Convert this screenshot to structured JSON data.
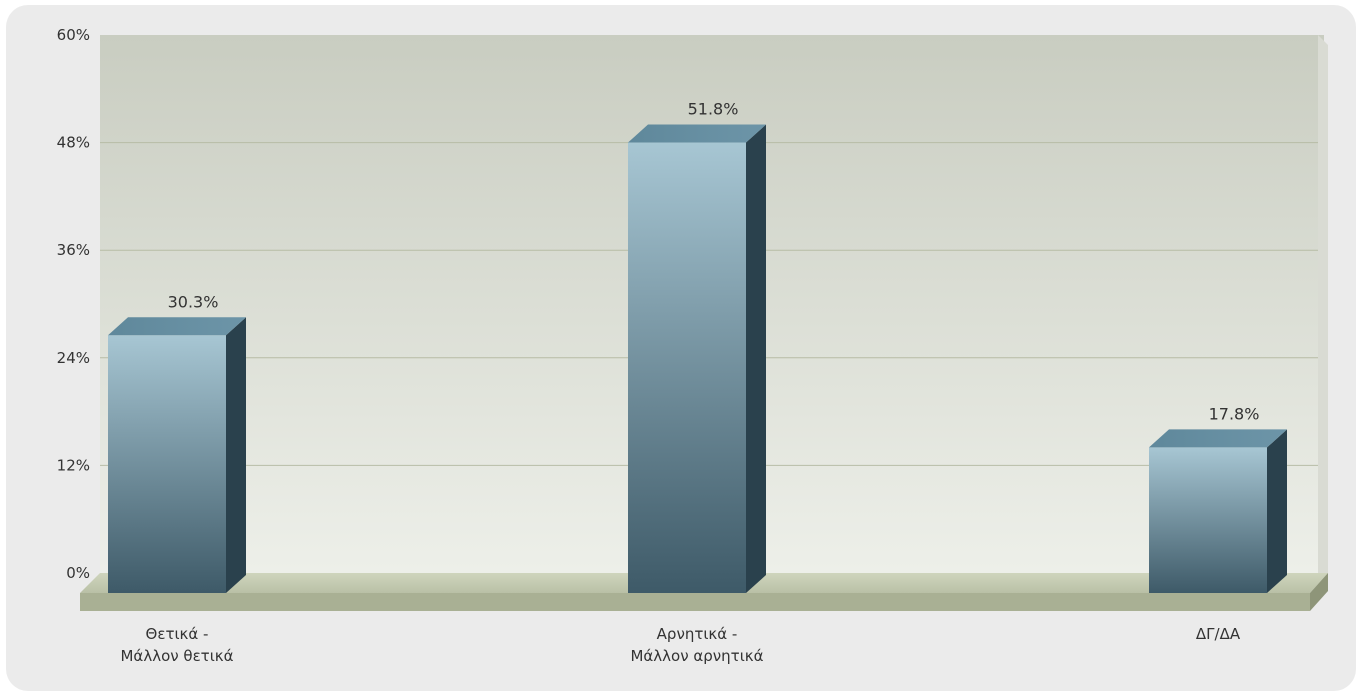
{
  "chart_data": {
    "type": "bar",
    "categories": [
      [
        "Θετικά -",
        "Μάλλον θετικά"
      ],
      [
        "Αρνητικά -",
        "Μάλλον αρνητικά"
      ],
      [
        "ΔΓ/ΔΑ"
      ]
    ],
    "values": [
      30.3,
      51.8,
      17.8
    ],
    "data_labels": [
      "30.3%",
      "51.8%",
      "17.8%"
    ],
    "y_ticks": [
      0,
      12,
      24,
      36,
      48,
      60
    ],
    "y_tick_labels": [
      "0%",
      "12%",
      "24%",
      "36%",
      "48%",
      "60%"
    ],
    "ylim": [
      0,
      60
    ],
    "grid": true,
    "style": "3d",
    "colors": {
      "bar_top": "#a7c6d3",
      "bar_bottom": "#3e5a68",
      "bar_side": "#2a414d",
      "bar_cap": "#6d95a8",
      "plot_top": "#c9cdc1",
      "plot_bottom": "#eef0ea",
      "floor": "#b9c0a6",
      "gridline": "#b7bca6"
    }
  }
}
